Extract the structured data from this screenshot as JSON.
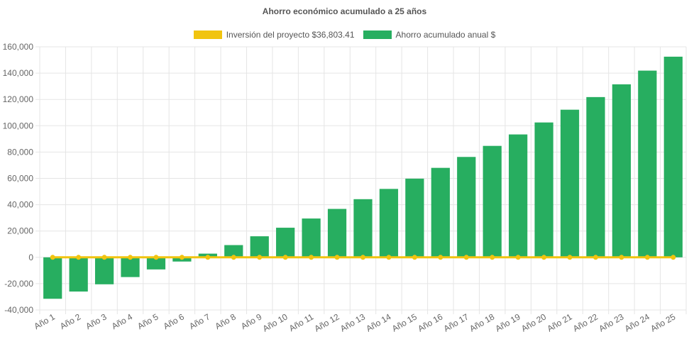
{
  "chart_data": {
    "type": "bar",
    "title": "Ahorro económico acumulado a 25 años",
    "xlabel": "",
    "ylabel": "",
    "ylim": [
      -40000,
      160000
    ],
    "y_ticks": [
      "160,000",
      "140,000",
      "120,000",
      "100,000",
      "80,000",
      "60,000",
      "40,000",
      "20,000",
      "0",
      "-20,000",
      "-40,000"
    ],
    "grid": true,
    "legend_position": "top",
    "categories": [
      "Año 1",
      "Año 2",
      "Año 3",
      "Año 4",
      "Año 5",
      "Año 6",
      "Año 7",
      "Año 8",
      "Año 9",
      "Año 10",
      "Año 11",
      "Año 12",
      "Año 13",
      "Año 14",
      "Año 15",
      "Año 16",
      "Año 17",
      "Año 18",
      "Año 19",
      "Año 20",
      "Año 21",
      "Año 22",
      "Año 23",
      "Año 24",
      "Año 25"
    ],
    "series": [
      {
        "name": "Inversión del proyecto $36,803.41",
        "type": "line",
        "color": "#f1c40f",
        "values": [
          0,
          0,
          0,
          0,
          0,
          0,
          0,
          0,
          0,
          0,
          0,
          0,
          0,
          0,
          0,
          0,
          0,
          0,
          0,
          0,
          0,
          0,
          0,
          0,
          0
        ]
      },
      {
        "name": "Ahorro acumulado anual $",
        "type": "bar",
        "color": "#27ae60",
        "values": [
          -31500,
          -26000,
          -20500,
          -15000,
          -9200,
          -3200,
          2800,
          9300,
          16000,
          22500,
          29500,
          36800,
          44200,
          52000,
          59800,
          68000,
          76300,
          84700,
          93400,
          102500,
          112200,
          121800,
          131500,
          141900,
          152500
        ]
      }
    ]
  }
}
